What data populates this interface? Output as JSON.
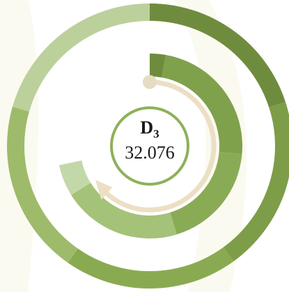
{
  "center": {
    "label": "D",
    "subscript": "3",
    "value": "32.076"
  }
}
